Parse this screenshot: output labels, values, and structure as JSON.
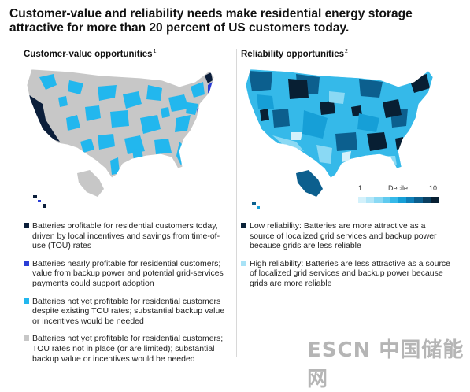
{
  "title": "Customer-value and reliability needs make residential energy storage attractive for more than 20 percent of US customers today.",
  "left_panel": {
    "title": "Customer-value opportunities",
    "footnote": "1",
    "legend": [
      {
        "color": "#0b1e3a",
        "text": "Batteries profitable for residential customers today, driven by local incentives and savings from time-of-use (TOU) rates"
      },
      {
        "color": "#2a3dd6",
        "text": "Batteries nearly profitable for residential customers; value from backup power and potential grid-services payments could support adoption"
      },
      {
        "color": "#22b7ee",
        "text": "Batteries not yet profitable for residential customers despite existing TOU rates; substantial backup value or incentives would be needed"
      },
      {
        "color": "#c7c7c7",
        "text": "Batteries not yet profitable for residential customers; TOU rates not in place (or are limited); substantial backup value or incentives would be needed"
      }
    ]
  },
  "right_panel": {
    "title": "Reliability opportunities",
    "footnote": "2",
    "decile": {
      "label": "Decile",
      "min": "1",
      "max": "10",
      "colors": [
        "#d3f1fb",
        "#b2e6f8",
        "#8ad9f4",
        "#5fcaef",
        "#35b9e9",
        "#169fd7",
        "#0f7fb8",
        "#0c5f8e",
        "#0a3f60",
        "#081f33"
      ]
    },
    "legend": [
      {
        "color": "#0a2238",
        "text": "Low reliability: Batteries are more attractive as a source of localized grid services and backup power because grids are less reliable"
      },
      {
        "color": "#a8e2f6",
        "text": "High reliability: Batteries are less attractive as a source of localized grid services and backup power because grids are more reliable"
      }
    ]
  },
  "watermark": "ESCN 中国储能网"
}
